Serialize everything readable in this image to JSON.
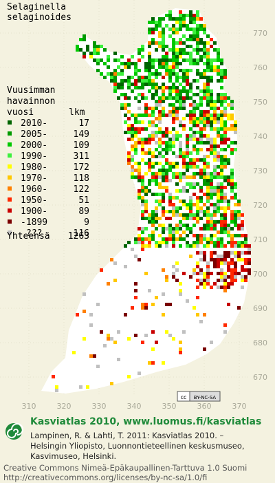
{
  "title": [
    "Selaginella",
    "selaginoides"
  ],
  "legend": {
    "heading": [
      "Vuusimman",
      "havainnon"
    ],
    "year_header": "vuosi",
    "count_header": "lkm",
    "items": [
      {
        "label": "2010-",
        "count": 17,
        "color": "#006400"
      },
      {
        "label": "2005-",
        "count": 149,
        "color": "#009a00"
      },
      {
        "label": "2000-",
        "count": 109,
        "color": "#00c800"
      },
      {
        "label": "1990-",
        "count": 311,
        "color": "#3cf03c"
      },
      {
        "label": "1980-",
        "count": 172,
        "color": "#ffff00"
      },
      {
        "label": "1970-",
        "count": 118,
        "color": "#ffc800"
      },
      {
        "label": "1960-",
        "count": 122,
        "color": "#ff8000"
      },
      {
        "label": "1950-",
        "count": 51,
        "color": "#ff2800"
      },
      {
        "label": "1900-",
        "count": 89,
        "color": "#c80000"
      },
      {
        "label": "-1899",
        "count": 9,
        "color": "#7a0000"
      },
      {
        "label": "???",
        "count": 116,
        "color": "#c0c0c0"
      }
    ],
    "total_label": "Yhteensä",
    "total": 1263
  },
  "y_labels": [
    770,
    760,
    750,
    740,
    730,
    720,
    710,
    700,
    690,
    680,
    670
  ],
  "x_labels": [
    310,
    320,
    330,
    340,
    350,
    360,
    370
  ],
  "badge": [
    "cc",
    "BY-NC-SA"
  ],
  "footer": {
    "heading": "Kasviatlas 2010, www.luomus.fi/kasviatlas",
    "citation": [
      "Lampinen, R. & Lahti, T. 2011: Kasviatlas 2010. –",
      "Helsingin Yliopisto, Luonnontieteellinen keskusmuseo,",
      "Kasvimuseo, Helsinki."
    ],
    "license": [
      "Creative Commons Nimeä-Epäkaupallinen-Tarttuva 1.0 Suomi",
      "http://creativecommons.org/licenses/by-nc-sa/1.0/fi"
    ]
  }
}
